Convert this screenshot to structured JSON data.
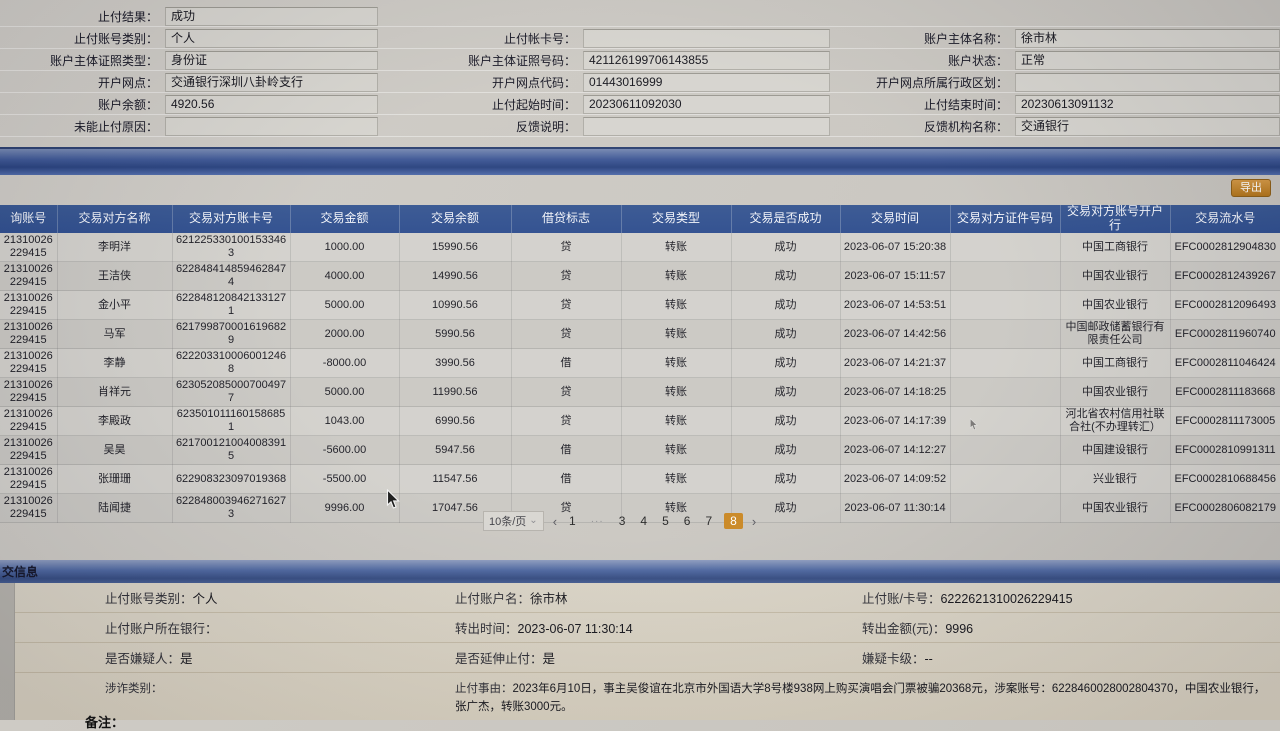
{
  "top_form": {
    "columns": [
      {
        "fields": [
          {
            "label": "止付结果：",
            "value": "成功"
          },
          {
            "label": "止付账号类别：",
            "value": "个人"
          },
          {
            "label": "账户主体证照类型：",
            "value": "身份证"
          },
          {
            "label": "开户网点：",
            "value": "交通银行深圳八卦岭支行"
          },
          {
            "label": "账户余额：",
            "value": "4920.56"
          },
          {
            "label": "未能止付原因：",
            "value": ""
          }
        ]
      },
      {
        "fields": [
          {
            "label": "",
            "value": null
          },
          {
            "label": "止付帐卡号：",
            "value": ""
          },
          {
            "label": "账户主体证照号码：",
            "value": "421126199706143855"
          },
          {
            "label": "开户网点代码：",
            "value": "01443016999"
          },
          {
            "label": "止付起始时间：",
            "value": "20230611092030"
          },
          {
            "label": "反馈说明：",
            "value": ""
          }
        ]
      },
      {
        "fields": [
          {
            "label": "",
            "value": null
          },
          {
            "label": "账户主体名称：",
            "value": "徐市林"
          },
          {
            "label": "账户状态：",
            "value": "正常"
          },
          {
            "label": "开户网点所属行政区划：",
            "value": ""
          },
          {
            "label": "止付结束时间：",
            "value": "20230613091132"
          },
          {
            "label": "反馈机构名称：",
            "value": "交通银行"
          }
        ]
      }
    ]
  },
  "toolbar": {
    "export_label": "导出"
  },
  "table": {
    "headers": [
      "询账号",
      "交易对方名称",
      "交易对方账卡号",
      "交易金额",
      "交易余额",
      "借贷标志",
      "交易类型",
      "交易是否成功",
      "交易时间",
      "交易对方证件号码",
      "交易对方账号开户行",
      "交易流水号"
    ],
    "rows": [
      [
        "21310026229415",
        "李明洋",
        "6212253301001533463",
        "1000.00",
        "15990.56",
        "贷",
        "转账",
        "成功",
        "2023-06-07 15:20:38",
        "",
        "中国工商银行",
        "EFC0002812904830"
      ],
      [
        "21310026229415",
        "王洁侠",
        "6228484148594628474",
        "4000.00",
        "14990.56",
        "贷",
        "转账",
        "成功",
        "2023-06-07 15:11:57",
        "",
        "中国农业银行",
        "EFC0002812439267"
      ],
      [
        "21310026229415",
        "金小平",
        "6228481208421331271",
        "5000.00",
        "10990.56",
        "贷",
        "转账",
        "成功",
        "2023-06-07 14:53:51",
        "",
        "中国农业银行",
        "EFC0002812096493"
      ],
      [
        "21310026229415",
        "马军",
        "6217998700016196829",
        "2000.00",
        "5990.56",
        "贷",
        "转账",
        "成功",
        "2023-06-07 14:42:56",
        "",
        "中国邮政储蓄银行有限责任公司",
        "EFC0002811960740"
      ],
      [
        "21310026229415",
        "李静",
        "6222033100060012468",
        "-8000.00",
        "3990.56",
        "借",
        "转账",
        "成功",
        "2023-06-07 14:21:37",
        "",
        "中国工商银行",
        "EFC0002811046424"
      ],
      [
        "21310026229415",
        "肖祥元",
        "6230520850007004977",
        "5000.00",
        "11990.56",
        "贷",
        "转账",
        "成功",
        "2023-06-07 14:18:25",
        "",
        "中国农业银行",
        "EFC0002811183668"
      ],
      [
        "21310026229415",
        "李殿政",
        "6235010111601586851",
        "1043.00",
        "6990.56",
        "贷",
        "转账",
        "成功",
        "2023-06-07 14:17:39",
        "",
        "河北省农村信用社联合社(不办理转汇）",
        "EFC0002811173005"
      ],
      [
        "21310026229415",
        "吴昊",
        "6217001210040083915",
        "-5600.00",
        "5947.56",
        "借",
        "转账",
        "成功",
        "2023-06-07 14:12:27",
        "",
        "中国建设银行",
        "EFC0002810991311"
      ],
      [
        "21310026229415",
        "张珊珊",
        "622908323097019368",
        "-5500.00",
        "11547.56",
        "借",
        "转账",
        "成功",
        "2023-06-07 14:09:52",
        "",
        "兴业银行",
        "EFC0002810688456"
      ],
      [
        "21310026229415",
        "陆闻捷",
        "6228480039462716273",
        "9996.00",
        "17047.56",
        "贷",
        "转账",
        "成功",
        "2023-06-07 11:30:14",
        "",
        "中国农业银行",
        "EFC0002806082179"
      ]
    ]
  },
  "pagination": {
    "page_size": "10条/页",
    "caret": "⌄",
    "prev": "‹",
    "items": [
      "1",
      "···",
      "3",
      "4",
      "5",
      "6",
      "7",
      "8"
    ],
    "active": "8",
    "next": "›"
  },
  "bottom_section": {
    "title": "交信息",
    "rows": [
      [
        {
          "label": "止付账号类别：",
          "value": "个人"
        },
        {
          "label": "止付账户名：",
          "value": "徐市林"
        },
        {
          "label": "止付账/卡号：",
          "value": "6222621310026229415"
        }
      ],
      [
        {
          "label": "止付账户所在银行：",
          "value": ""
        },
        {
          "label": "转出时间：",
          "value": "2023-06-07 11:30:14"
        },
        {
          "label": "转出金额(元)：",
          "value": "9996"
        }
      ],
      [
        {
          "label": "是否嫌疑人：",
          "value": "是"
        },
        {
          "label": "是否延伸止付：",
          "value": "是"
        },
        {
          "label": "嫌疑卡级：",
          "value": "--"
        }
      ]
    ],
    "fraud_type_label": "涉诈类别：",
    "reason_label": "止付事由：",
    "reason_text": "2023年6月10日，事主吴俊谊在北京市外国语大学8号楼938网上购买演唱会门票被骗20368元，涉案账号：6228460028002804370，中国农业银行，张广杰，转账3000元。",
    "note_label": "备注："
  },
  "colors": {
    "table_header": "#2a4a8c",
    "accent_orange": "#c8851f",
    "bar_blue": "#33508f",
    "panel_beige": "#d9d2c2"
  }
}
